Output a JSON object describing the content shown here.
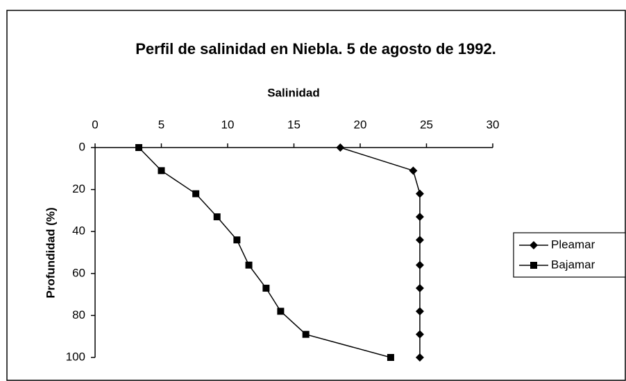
{
  "chart_data": {
    "type": "line",
    "title": "Perfil de salinidad en Niebla. 5 de agosto de 1992.",
    "xlabel": "Salinidad",
    "ylabel": "Profundidad (%)",
    "y": [
      0,
      11,
      22,
      33,
      44,
      56,
      67,
      78,
      89,
      100
    ],
    "series": [
      {
        "name": "Pleamar",
        "color": "#000000",
        "marker": "diamond",
        "x": [
          18.5,
          24,
          24.5,
          24.5,
          24.5,
          24.5,
          24.5,
          24.5,
          24.5,
          24.5
        ]
      },
      {
        "name": "Bajamar",
        "color": "#000000",
        "marker": "square",
        "x": [
          3.3,
          5,
          7.6,
          9.2,
          10.7,
          11.6,
          12.9,
          14,
          15.9,
          22.3
        ]
      }
    ],
    "xlim": [
      0,
      30
    ],
    "xticks": [
      0,
      5,
      10,
      15,
      20,
      25,
      30
    ],
    "ylim": [
      0,
      100
    ],
    "yticks": [
      0,
      20,
      40,
      60,
      80,
      100
    ],
    "y_inverted": true,
    "x_axis_top": true,
    "legend": "right"
  }
}
